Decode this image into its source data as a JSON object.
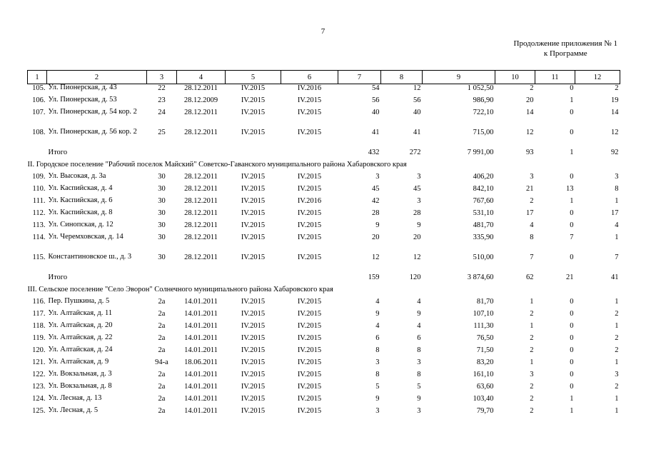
{
  "page": {
    "number": "7",
    "note_line1": "Продолжение приложения № 1",
    "note_line2": "к Программе"
  },
  "columns": [
    "1",
    "2",
    "3",
    "4",
    "5",
    "6",
    "7",
    "8",
    "9",
    "10",
    "11",
    "12"
  ],
  "groups": [
    {
      "rows": [
        {
          "num": "105.",
          "name": "Ул. Пионерская, д. 43",
          "c3": "22",
          "c4": "28.12.2011",
          "c5": "IV.2015",
          "c6": "IV.2016",
          "c7": "54",
          "c8": "12",
          "c9": "1 052,50",
          "c10": "2",
          "c11": "0",
          "c12": "2"
        },
        {
          "num": "106.",
          "name": "Ул. Пионерская, д. 53",
          "c3": "23",
          "c4": "28.12.2009",
          "c5": "IV.2015",
          "c6": "IV.2015",
          "c7": "56",
          "c8": "56",
          "c9": "986,90",
          "c10": "20",
          "c11": "1",
          "c12": "19"
        },
        {
          "num": "107.",
          "name": "Ул. Пионерская, д. 54 кор. 2",
          "c3": "24",
          "c4": "28.12.2011",
          "c5": "IV.2015",
          "c6": "IV.2015",
          "c7": "40",
          "c8": "40",
          "c9": "722,10",
          "c10": "14",
          "c11": "0",
          "c12": "14"
        },
        {
          "num": "108.",
          "name": "Ул. Пионерская, д. 56 кор. 2",
          "c3": "25",
          "c4": "28.12.2011",
          "c5": "IV.2015",
          "c6": "IV.2015",
          "c7": "41",
          "c8": "41",
          "c9": "715,00",
          "c10": "12",
          "c11": "0",
          "c12": "12"
        }
      ],
      "total": {
        "label": "Итого",
        "c7": "432",
        "c8": "272",
        "c9": "7 991,00",
        "c10": "93",
        "c11": "1",
        "c12": "92"
      }
    },
    {
      "section": "II. Городское поселение \"Рабочий поселок Майский\" Советско-Гаванского муниципального района Хабаровского края",
      "rows": [
        {
          "num": "109.",
          "name": "Ул. Высокая, д. 3а",
          "c3": "30",
          "c4": "28.12.2011",
          "c5": "IV.2015",
          "c6": "IV.2015",
          "c7": "3",
          "c8": "3",
          "c9": "406,20",
          "c10": "3",
          "c11": "0",
          "c12": "3"
        },
        {
          "num": "110.",
          "name": "Ул. Каспийская, д. 4",
          "c3": "30",
          "c4": "28.12.2011",
          "c5": "IV.2015",
          "c6": "IV.2015",
          "c7": "45",
          "c8": "45",
          "c9": "842,10",
          "c10": "21",
          "c11": "13",
          "c12": "8"
        },
        {
          "num": "111.",
          "name": "Ул. Каспийская, д. 6",
          "c3": "30",
          "c4": "28.12.2011",
          "c5": "IV.2015",
          "c6": "IV.2016",
          "c7": "42",
          "c8": "3",
          "c9": "767,60",
          "c10": "2",
          "c11": "1",
          "c12": "1"
        },
        {
          "num": "112.",
          "name": "Ул. Каспийская, д. 8",
          "c3": "30",
          "c4": "28.12.2011",
          "c5": "IV.2015",
          "c6": "IV.2015",
          "c7": "28",
          "c8": "28",
          "c9": "531,10",
          "c10": "17",
          "c11": "0",
          "c12": "17"
        },
        {
          "num": "113.",
          "name": "Ул. Синопская, д. 12",
          "c3": "30",
          "c4": "28.12.2011",
          "c5": "IV.2015",
          "c6": "IV.2015",
          "c7": "9",
          "c8": "9",
          "c9": "481,70",
          "c10": "4",
          "c11": "0",
          "c12": "4"
        },
        {
          "num": "114.",
          "name": "Ул. Черемховская, д. 14",
          "c3": "30",
          "c4": "28.12.2011",
          "c5": "IV.2015",
          "c6": "IV.2015",
          "c7": "20",
          "c8": "20",
          "c9": "335,90",
          "c10": "8",
          "c11": "7",
          "c12": "1"
        },
        {
          "num": "115.",
          "name": "Константиновское ш., д. 3",
          "c3": "30",
          "c4": "28.12.2011",
          "c5": "IV.2015",
          "c6": "IV.2015",
          "c7": "12",
          "c8": "12",
          "c9": "510,00",
          "c10": "7",
          "c11": "0",
          "c12": "7"
        }
      ],
      "total": {
        "label": "Итого",
        "c7": "159",
        "c8": "120",
        "c9": "3 874,60",
        "c10": "62",
        "c11": "21",
        "c12": "41"
      }
    },
    {
      "section": "III. Сельское поселение \"Село Эворон\" Солнечного муниципального района Хабаровского края",
      "rows": [
        {
          "num": "116.",
          "name": "Пер. Пушкина, д. 5",
          "c3": "2а",
          "c4": "14.01.2011",
          "c5": "IV.2015",
          "c6": "IV.2015",
          "c7": "4",
          "c8": "4",
          "c9": "81,70",
          "c10": "1",
          "c11": "0",
          "c12": "1"
        },
        {
          "num": "117.",
          "name": "Ул. Алтайская, д. 11",
          "c3": "2а",
          "c4": "14.01.2011",
          "c5": "IV.2015",
          "c6": "IV.2015",
          "c7": "9",
          "c8": "9",
          "c9": "107,10",
          "c10": "2",
          "c11": "0",
          "c12": "2"
        },
        {
          "num": "118.",
          "name": "Ул. Алтайская, д. 20",
          "c3": "2а",
          "c4": "14.01.2011",
          "c5": "IV.2015",
          "c6": "IV.2015",
          "c7": "4",
          "c8": "4",
          "c9": "111,30",
          "c10": "1",
          "c11": "0",
          "c12": "1"
        },
        {
          "num": "119.",
          "name": "Ул. Алтайская, д. 22",
          "c3": "2а",
          "c4": "14.01.2011",
          "c5": "IV.2015",
          "c6": "IV.2015",
          "c7": "6",
          "c8": "6",
          "c9": "76,50",
          "c10": "2",
          "c11": "0",
          "c12": "2"
        },
        {
          "num": "120.",
          "name": "Ул. Алтайская, д. 24",
          "c3": "2а",
          "c4": "14.01.2011",
          "c5": "IV.2015",
          "c6": "IV.2015",
          "c7": "8",
          "c8": "8",
          "c9": "71,50",
          "c10": "2",
          "c11": "0",
          "c12": "2"
        },
        {
          "num": "121.",
          "name": "Ул. Алтайская, д. 9",
          "c3": "94-а",
          "c4": "18.06.2011",
          "c5": "IV.2015",
          "c6": "IV.2015",
          "c7": "3",
          "c8": "3",
          "c9": "83,20",
          "c10": "1",
          "c11": "0",
          "c12": "1"
        },
        {
          "num": "122.",
          "name": "Ул. Вокзальная, д. 3",
          "c3": "2а",
          "c4": "14.01.2011",
          "c5": "IV.2015",
          "c6": "IV.2015",
          "c7": "8",
          "c8": "8",
          "c9": "161,10",
          "c10": "3",
          "c11": "0",
          "c12": "3"
        },
        {
          "num": "123.",
          "name": "Ул. Вокзальная, д. 8",
          "c3": "2а",
          "c4": "14.01.2011",
          "c5": "IV.2015",
          "c6": "IV.2015",
          "c7": "5",
          "c8": "5",
          "c9": "63,60",
          "c10": "2",
          "c11": "0",
          "c12": "2"
        },
        {
          "num": "124.",
          "name": "Ул. Лесная, д. 13",
          "c3": "2а",
          "c4": "14.01.2011",
          "c5": "IV.2015",
          "c6": "IV.2015",
          "c7": "9",
          "c8": "9",
          "c9": "103,40",
          "c10": "2",
          "c11": "1",
          "c12": "1"
        },
        {
          "num": "125.",
          "name": "Ул. Лесная, д. 5",
          "c3": "2а",
          "c4": "14.01.2011",
          "c5": "IV.2015",
          "c6": "IV.2015",
          "c7": "3",
          "c8": "3",
          "c9": "79,70",
          "c10": "2",
          "c11": "1",
          "c12": "1"
        }
      ]
    }
  ]
}
